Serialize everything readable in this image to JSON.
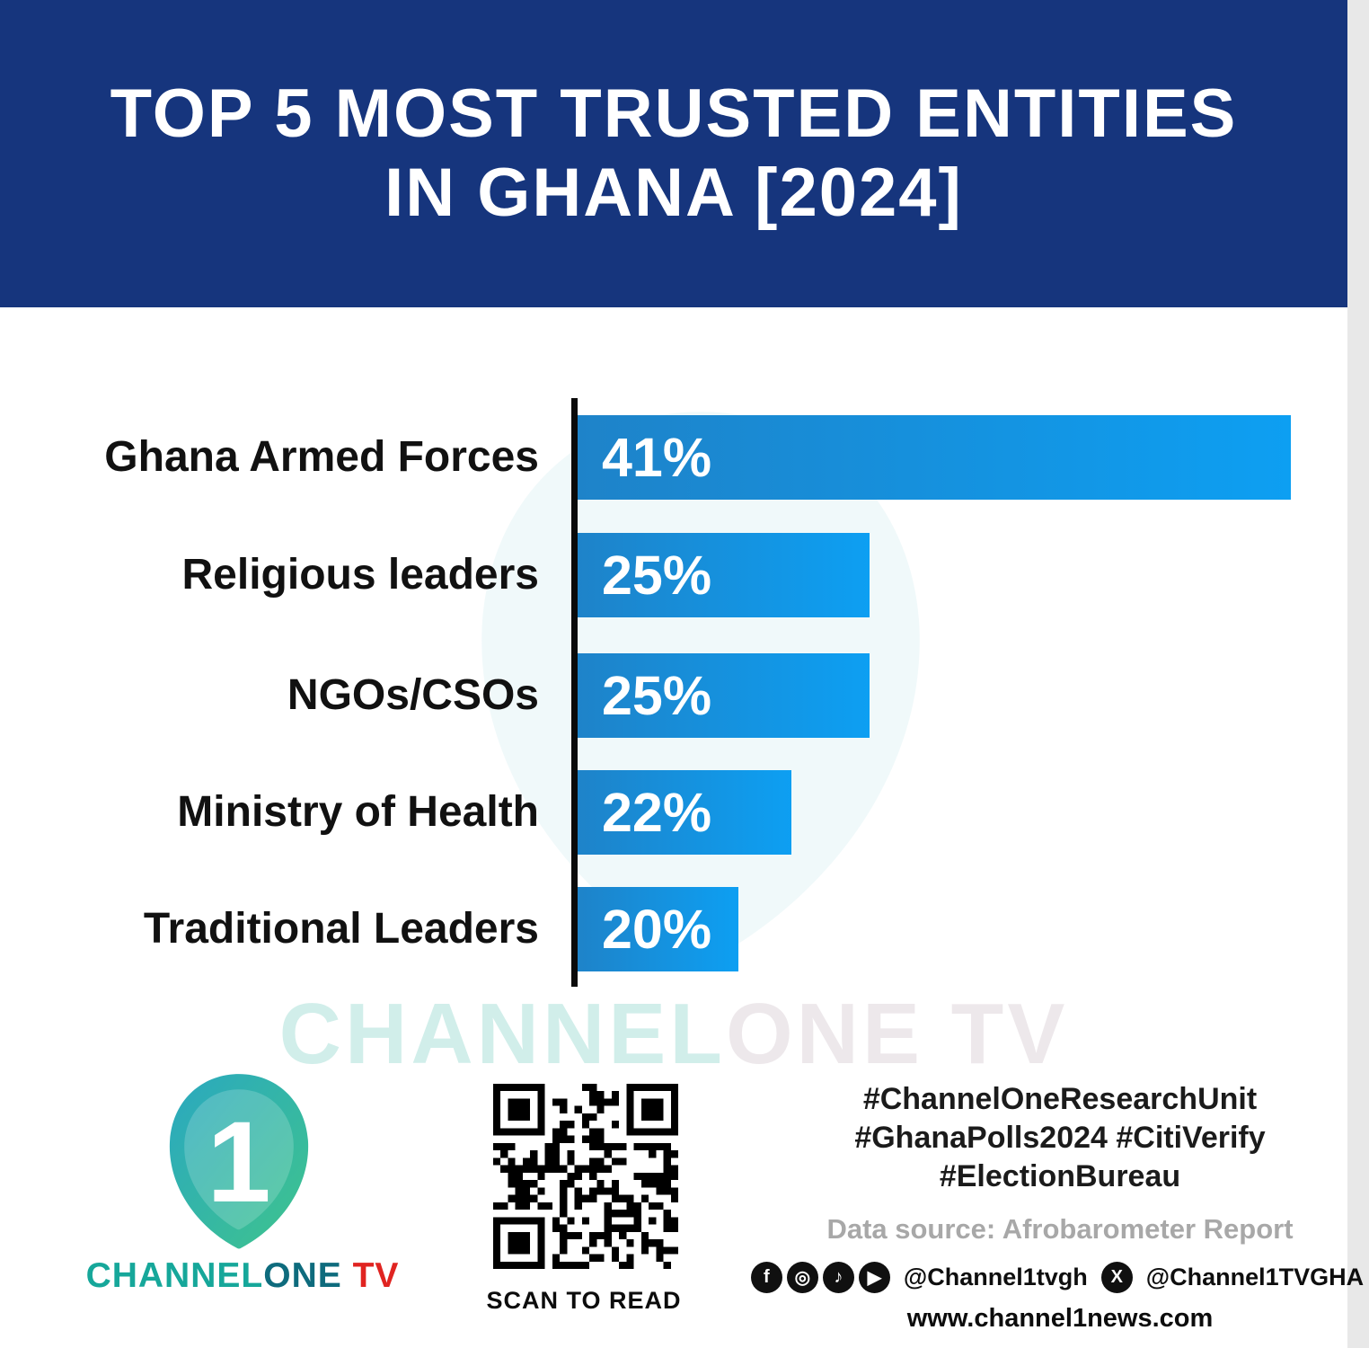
{
  "header": {
    "title_line1": "TOP 5 MOST TRUSTED ENTITIES",
    "title_line2": "IN GHANA [2024]",
    "bg_color": "#16357d"
  },
  "chart_data": {
    "type": "bar",
    "orientation": "horizontal",
    "title": "Top 5 Most Trusted Entities in Ghana [2024]",
    "categories": [
      "Ghana Armed Forces",
      "Religious leaders",
      "NGOs/CSOs",
      "Ministry of Health",
      "Traditional Leaders"
    ],
    "values": [
      41,
      25,
      25,
      22,
      20
    ],
    "value_labels": [
      "41%",
      "25%",
      "25%",
      "22%",
      "20%"
    ],
    "unit": "%",
    "bar_pixel_widths": [
      794,
      325,
      325,
      238,
      179
    ],
    "bar_gradient": [
      "#1e83c9",
      "#0d9ff2"
    ],
    "axis_color": "#0a0a0a",
    "grid": false,
    "legend": false,
    "source": "Afrobarometer Report"
  },
  "watermark": {
    "part1": "CHANNEL",
    "part2": "ONE TV"
  },
  "footer": {
    "brand": {
      "channel": "CHANNEL",
      "one": "ONE",
      "tv": " TV",
      "digit": "1"
    },
    "qr_caption": "SCAN TO READ",
    "hashtags": [
      "#ChannelOneResearchUnit",
      "#GhanaPolls2024 #CitiVerify",
      "#ElectionBureau"
    ],
    "data_source": "Data source: Afrobarometer Report",
    "social": {
      "facebook_icon": "f",
      "instagram_icon": "◎",
      "tiktok_icon": "♪",
      "youtube_icon": "▶",
      "x_icon": "X",
      "handle_main": "@Channel1tvgh",
      "handle_x": "@Channel1TVGHA"
    },
    "website": "www.channel1news.com"
  }
}
